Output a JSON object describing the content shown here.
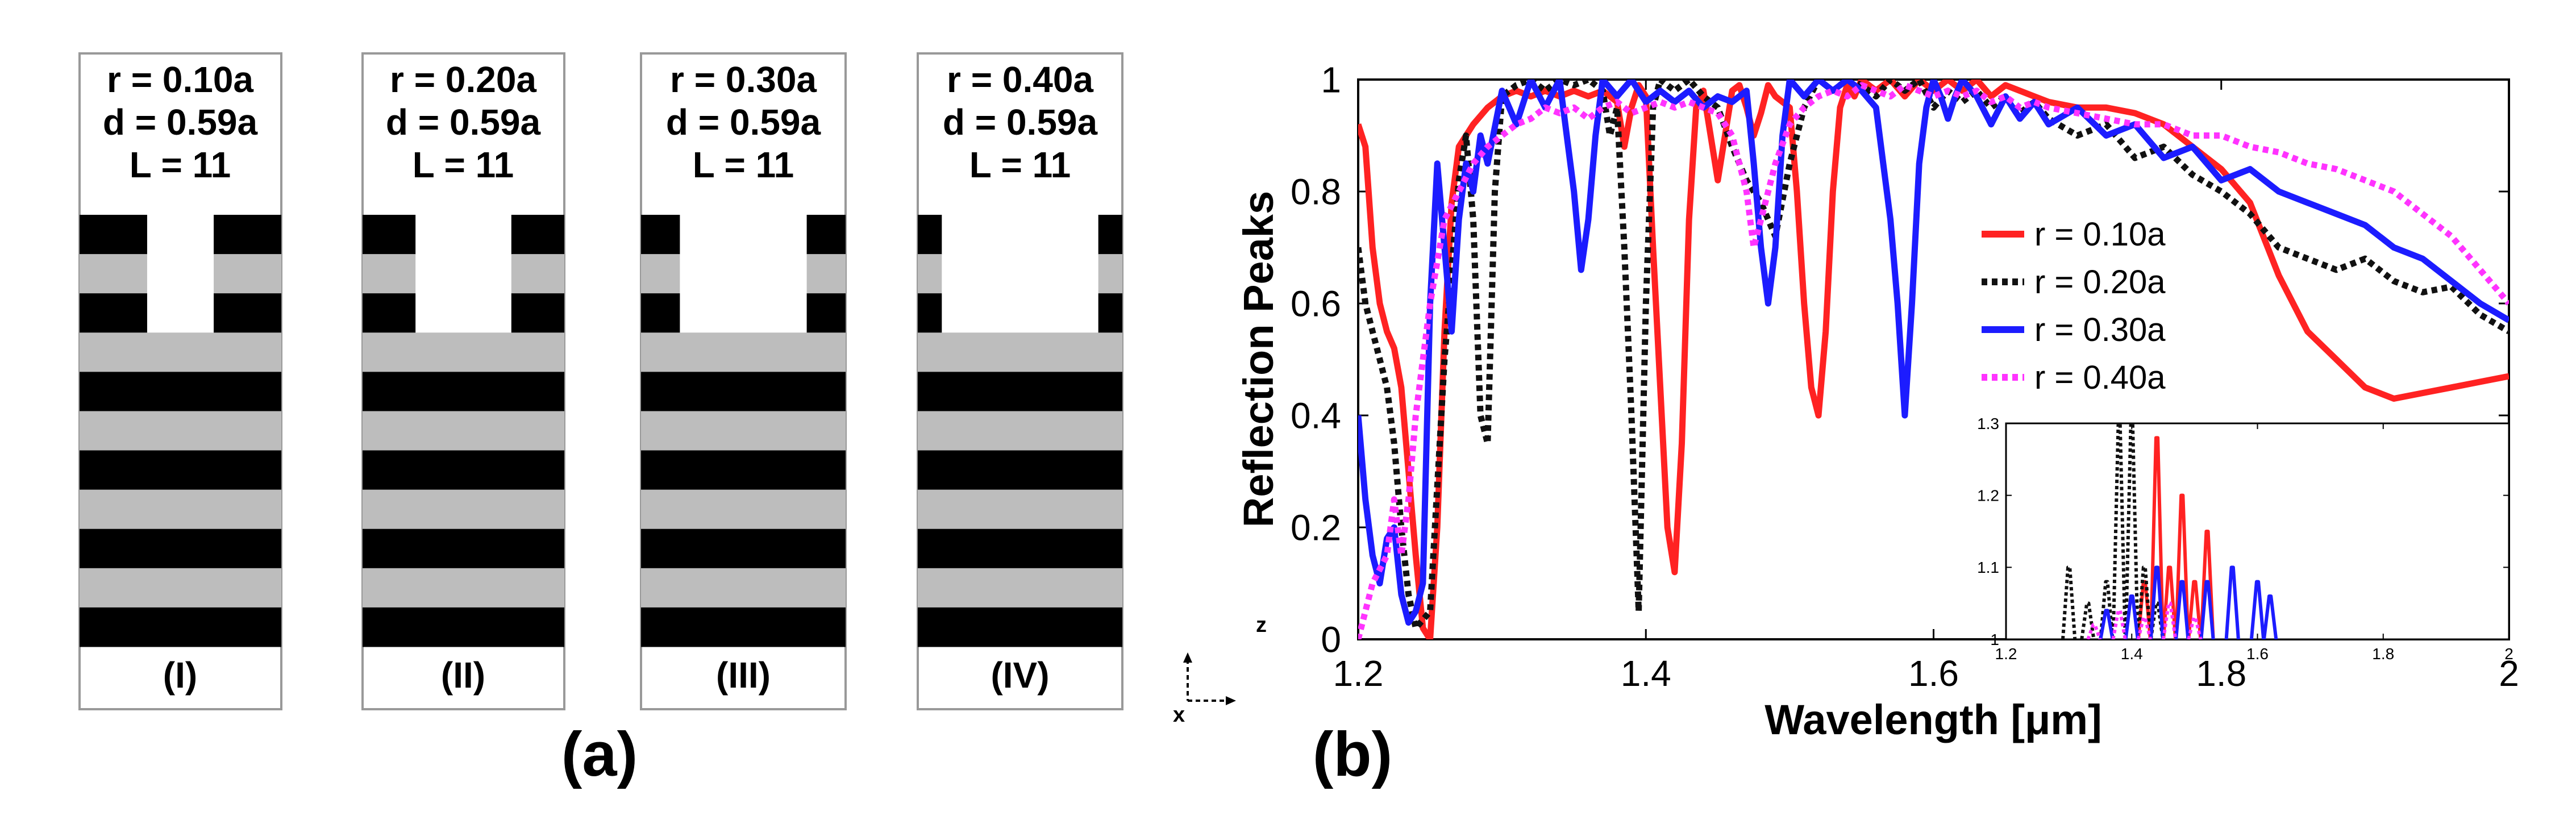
{
  "panel_a": {
    "label": "(a)",
    "structures": [
      {
        "numeral": "(I)",
        "line1": "r = 0.10a",
        "line2": "d = 0.59a",
        "line3": "L = 11",
        "r": 0.1
      },
      {
        "numeral": "(II)",
        "line1": "r = 0.20a",
        "line2": "d = 0.59a",
        "line3": "L = 11",
        "r": 0.2
      },
      {
        "numeral": "(III)",
        "line1": "r = 0.30a",
        "line2": "d = 0.59a",
        "line3": "L = 11",
        "r": 0.3
      },
      {
        "numeral": "(IV)",
        "line1": "r = 0.40a",
        "line2": "d = 0.59a",
        "line3": "L = 11",
        "r": 0.4
      }
    ]
  },
  "panel_b": {
    "label": "(b)",
    "axis_triad": {
      "z": "z",
      "x": "x"
    }
  },
  "colors": {
    "r010": "#ff2222",
    "r020": "#111111",
    "r030": "#1c1cff",
    "r040": "#ff33ff",
    "grey_layer": "#bdbdbd",
    "black_layer": "#000000"
  },
  "chart_data": [
    {
      "type": "line",
      "title": "",
      "xlabel": "Wavelength [μm]",
      "ylabel": "Reflection Peaks",
      "xlim": [
        1.2,
        2.0
      ],
      "ylim": [
        0,
        1
      ],
      "xticks": [
        "1.2",
        "1.4",
        "1.6",
        "1.8",
        "2"
      ],
      "yticks": [
        "0",
        "0.2",
        "0.4",
        "0.6",
        "0.8",
        "1"
      ],
      "grid": false,
      "legend_position": "center-right",
      "series": [
        {
          "name": "r = 0.10a",
          "color": "#ff2222",
          "dash": "solid",
          "x": [
            1.2,
            1.205,
            1.21,
            1.215,
            1.22,
            1.225,
            1.23,
            1.235,
            1.24,
            1.245,
            1.25,
            1.255,
            1.26,
            1.265,
            1.27,
            1.28,
            1.29,
            1.3,
            1.31,
            1.32,
            1.33,
            1.34,
            1.35,
            1.36,
            1.37,
            1.38,
            1.385,
            1.39,
            1.395,
            1.4,
            1.405,
            1.41,
            1.415,
            1.42,
            1.425,
            1.43,
            1.435,
            1.44,
            1.445,
            1.45,
            1.455,
            1.46,
            1.465,
            1.47,
            1.475,
            1.48,
            1.485,
            1.49,
            1.5,
            1.505,
            1.51,
            1.515,
            1.52,
            1.525,
            1.53,
            1.535,
            1.54,
            1.545,
            1.55,
            1.56,
            1.57,
            1.58,
            1.59,
            1.6,
            1.61,
            1.62,
            1.63,
            1.64,
            1.65,
            1.66,
            1.67,
            1.68,
            1.7,
            1.72,
            1.74,
            1.76,
            1.78,
            1.8,
            1.82,
            1.84,
            1.86,
            1.88,
            1.9,
            1.92,
            1.94,
            1.96,
            1.98,
            2.0
          ],
          "y": [
            0.92,
            0.88,
            0.7,
            0.6,
            0.55,
            0.52,
            0.45,
            0.3,
            0.15,
            0.02,
            0.0,
            0.2,
            0.55,
            0.78,
            0.88,
            0.92,
            0.95,
            0.97,
            0.98,
            0.97,
            0.98,
            0.97,
            0.98,
            0.97,
            0.98,
            0.96,
            0.88,
            0.95,
            0.99,
            0.97,
            0.7,
            0.45,
            0.2,
            0.12,
            0.35,
            0.75,
            0.95,
            0.98,
            0.9,
            0.82,
            0.9,
            0.98,
            0.99,
            0.95,
            0.9,
            0.94,
            0.99,
            0.97,
            0.95,
            0.8,
            0.6,
            0.45,
            0.4,
            0.55,
            0.8,
            0.95,
            0.99,
            0.97,
            1.0,
            0.98,
            1.0,
            0.97,
            1.0,
            0.98,
            1.0,
            0.98,
            1.0,
            0.97,
            0.99,
            0.98,
            0.97,
            0.96,
            0.95,
            0.95,
            0.94,
            0.92,
            0.88,
            0.84,
            0.78,
            0.65,
            0.55,
            0.5,
            0.45,
            0.43,
            0.44,
            0.45,
            0.46,
            0.47
          ]
        },
        {
          "name": "r = 0.20a",
          "color": "#111111",
          "dash": "dotted",
          "x": [
            1.2,
            1.205,
            1.21,
            1.215,
            1.22,
            1.225,
            1.23,
            1.235,
            1.24,
            1.25,
            1.26,
            1.27,
            1.275,
            1.28,
            1.285,
            1.29,
            1.295,
            1.3,
            1.31,
            1.32,
            1.33,
            1.34,
            1.35,
            1.36,
            1.37,
            1.375,
            1.38,
            1.385,
            1.39,
            1.395,
            1.4,
            1.405,
            1.41,
            1.42,
            1.43,
            1.44,
            1.45,
            1.46,
            1.47,
            1.48,
            1.49,
            1.5,
            1.51,
            1.52,
            1.53,
            1.54,
            1.55,
            1.56,
            1.57,
            1.58,
            1.59,
            1.6,
            1.61,
            1.62,
            1.63,
            1.64,
            1.65,
            1.66,
            1.67,
            1.68,
            1.7,
            1.72,
            1.74,
            1.76,
            1.78,
            1.8,
            1.82,
            1.84,
            1.86,
            1.88,
            1.9,
            1.92,
            1.94,
            1.96,
            1.98,
            2.0
          ],
          "y": [
            0.7,
            0.6,
            0.55,
            0.5,
            0.45,
            0.35,
            0.2,
            0.08,
            0.02,
            0.05,
            0.5,
            0.82,
            0.9,
            0.75,
            0.4,
            0.35,
            0.8,
            0.97,
            0.99,
            1.0,
            0.98,
            1.0,
            0.99,
            1.0,
            0.98,
            0.9,
            0.95,
            0.7,
            0.4,
            0.05,
            0.6,
            0.95,
            1.0,
            0.98,
            1.0,
            0.97,
            0.95,
            0.88,
            0.82,
            0.78,
            0.72,
            0.85,
            0.95,
            1.0,
            0.98,
            1.0,
            0.99,
            0.97,
            1.0,
            0.98,
            1.0,
            0.95,
            0.98,
            0.96,
            0.98,
            0.95,
            0.97,
            0.94,
            0.96,
            0.93,
            0.9,
            0.92,
            0.86,
            0.88,
            0.83,
            0.8,
            0.76,
            0.7,
            0.68,
            0.66,
            0.68,
            0.64,
            0.62,
            0.63,
            0.58,
            0.55
          ]
        },
        {
          "name": "r = 0.30a",
          "color": "#1c1cff",
          "dash": "solid",
          "x": [
            1.2,
            1.205,
            1.21,
            1.215,
            1.22,
            1.225,
            1.23,
            1.235,
            1.24,
            1.245,
            1.25,
            1.255,
            1.26,
            1.265,
            1.27,
            1.275,
            1.28,
            1.285,
            1.29,
            1.3,
            1.31,
            1.32,
            1.33,
            1.34,
            1.345,
            1.35,
            1.355,
            1.36,
            1.365,
            1.37,
            1.38,
            1.39,
            1.4,
            1.41,
            1.42,
            1.43,
            1.44,
            1.45,
            1.46,
            1.47,
            1.475,
            1.48,
            1.485,
            1.49,
            1.495,
            1.5,
            1.51,
            1.52,
            1.53,
            1.54,
            1.55,
            1.56,
            1.565,
            1.57,
            1.575,
            1.58,
            1.585,
            1.59,
            1.595,
            1.6,
            1.605,
            1.61,
            1.615,
            1.62,
            1.63,
            1.64,
            1.65,
            1.66,
            1.67,
            1.68,
            1.7,
            1.72,
            1.74,
            1.76,
            1.78,
            1.8,
            1.82,
            1.84,
            1.86,
            1.88,
            1.9,
            1.92,
            1.94,
            1.96,
            1.98,
            2.0
          ],
          "y": [
            0.4,
            0.25,
            0.15,
            0.1,
            0.18,
            0.2,
            0.08,
            0.03,
            0.05,
            0.1,
            0.6,
            0.85,
            0.7,
            0.55,
            0.75,
            0.85,
            0.8,
            0.9,
            0.85,
            0.98,
            0.92,
            1.0,
            0.95,
            1.0,
            0.9,
            0.8,
            0.66,
            0.75,
            0.9,
            1.0,
            0.97,
            1.0,
            0.96,
            0.98,
            0.96,
            0.98,
            0.95,
            0.97,
            0.96,
            0.98,
            0.85,
            0.7,
            0.6,
            0.7,
            0.9,
            1.0,
            0.97,
            1.0,
            0.98,
            1.0,
            0.98,
            0.95,
            0.85,
            0.75,
            0.6,
            0.4,
            0.6,
            0.85,
            0.95,
            1.0,
            0.97,
            0.93,
            0.97,
            1.0,
            0.97,
            0.92,
            0.97,
            0.93,
            0.96,
            0.92,
            0.95,
            0.9,
            0.92,
            0.86,
            0.88,
            0.82,
            0.84,
            0.8,
            0.78,
            0.76,
            0.74,
            0.7,
            0.68,
            0.64,
            0.6,
            0.57
          ]
        },
        {
          "name": "r = 0.40a",
          "color": "#ff33ff",
          "dash": "dotted",
          "x": [
            1.2,
            1.21,
            1.22,
            1.225,
            1.23,
            1.235,
            1.24,
            1.25,
            1.26,
            1.27,
            1.28,
            1.29,
            1.3,
            1.31,
            1.32,
            1.33,
            1.34,
            1.35,
            1.36,
            1.37,
            1.38,
            1.39,
            1.4,
            1.41,
            1.42,
            1.43,
            1.44,
            1.45,
            1.46,
            1.47,
            1.475,
            1.48,
            1.49,
            1.5,
            1.51,
            1.52,
            1.53,
            1.54,
            1.55,
            1.56,
            1.57,
            1.58,
            1.59,
            1.6,
            1.61,
            1.62,
            1.63,
            1.64,
            1.65,
            1.66,
            1.67,
            1.68,
            1.7,
            1.72,
            1.74,
            1.76,
            1.78,
            1.8,
            1.82,
            1.84,
            1.86,
            1.88,
            1.9,
            1.92,
            1.94,
            1.96,
            1.98,
            2.0
          ],
          "y": [
            0.0,
            0.1,
            0.15,
            0.25,
            0.15,
            0.25,
            0.4,
            0.6,
            0.75,
            0.8,
            0.85,
            0.88,
            0.9,
            0.92,
            0.93,
            0.95,
            0.94,
            0.95,
            0.93,
            0.95,
            0.96,
            0.94,
            0.95,
            0.96,
            0.95,
            0.96,
            0.95,
            0.94,
            0.9,
            0.8,
            0.7,
            0.75,
            0.85,
            0.92,
            0.95,
            0.97,
            0.98,
            0.97,
            0.99,
            0.98,
            0.97,
            0.99,
            0.98,
            0.97,
            0.98,
            0.97,
            0.98,
            0.96,
            0.97,
            0.95,
            0.96,
            0.95,
            0.94,
            0.93,
            0.92,
            0.92,
            0.9,
            0.9,
            0.88,
            0.87,
            0.85,
            0.84,
            0.82,
            0.8,
            0.76,
            0.72,
            0.66,
            0.6
          ]
        }
      ]
    },
    {
      "type": "line",
      "title": "",
      "xlabel": "",
      "ylabel": "",
      "xlim": [
        1.2,
        2.0
      ],
      "ylim": [
        1.0,
        1.3
      ],
      "xticks": [
        "1.2",
        "1.4",
        "1.6",
        "1.8",
        "2"
      ],
      "yticks": [
        "1",
        "1.1",
        "1.2",
        "1.3"
      ],
      "grid": false,
      "series": [
        {
          "name": "r = 0.10a",
          "color": "#ff2222",
          "dash": "solid",
          "peaks": [
            [
              1.42,
              1.08
            ],
            [
              1.44,
              1.28
            ],
            [
              1.46,
              1.1
            ],
            [
              1.48,
              1.2
            ],
            [
              1.5,
              1.08
            ],
            [
              1.52,
              1.15
            ]
          ]
        },
        {
          "name": "r = 0.20a",
          "color": "#111111",
          "dash": "dotted",
          "peaks": [
            [
              1.3,
              1.1
            ],
            [
              1.33,
              1.05
            ],
            [
              1.36,
              1.08
            ],
            [
              1.38,
              1.3
            ],
            [
              1.4,
              1.3
            ],
            [
              1.42,
              1.1
            ],
            [
              1.44,
              1.05
            ]
          ]
        },
        {
          "name": "r = 0.30a",
          "color": "#1c1cff",
          "dash": "solid",
          "peaks": [
            [
              1.36,
              1.04
            ],
            [
              1.4,
              1.06
            ],
            [
              1.44,
              1.1
            ],
            [
              1.48,
              1.08
            ],
            [
              1.52,
              1.08
            ],
            [
              1.56,
              1.1
            ],
            [
              1.6,
              1.08
            ],
            [
              1.62,
              1.06
            ]
          ]
        },
        {
          "name": "r = 0.40a",
          "color": "#ff33ff",
          "dash": "dotted",
          "peaks": [
            [
              1.34,
              1.02
            ],
            [
              1.38,
              1.04
            ],
            [
              1.42,
              1.03
            ],
            [
              1.46,
              1.05
            ],
            [
              1.5,
              1.03
            ]
          ]
        }
      ]
    }
  ]
}
